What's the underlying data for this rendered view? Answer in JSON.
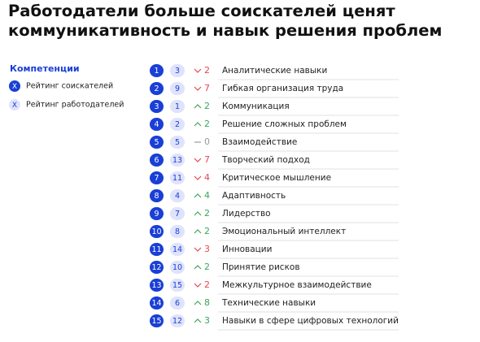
{
  "title": [
    "Работодатели больше соискателей ценят",
    "коммуникативность и навык решения проблем"
  ],
  "legend": {
    "heading": "Компетенции",
    "items": [
      {
        "marker": "X",
        "label": "Рейтинг соискателей"
      },
      {
        "marker": "X",
        "label": "Рейтинг работодателей"
      }
    ]
  },
  "rows": [
    {
      "applicant_rank": 1,
      "employer_rank": 3,
      "change": 2,
      "skill": "Аналитические навыки"
    },
    {
      "applicant_rank": 2,
      "employer_rank": 9,
      "change": 7,
      "skill": "Гибкая организация труда"
    },
    {
      "applicant_rank": 3,
      "employer_rank": 1,
      "change": 2,
      "skill": "Коммуникация"
    },
    {
      "applicant_rank": 4,
      "employer_rank": 2,
      "change": 2,
      "skill": "Решение сложных проблем"
    },
    {
      "applicant_rank": 5,
      "employer_rank": 5,
      "change": 0,
      "skill": "Взаимодействие"
    },
    {
      "applicant_rank": 6,
      "employer_rank": 13,
      "change": 7,
      "skill": "Творческий подход"
    },
    {
      "applicant_rank": 7,
      "employer_rank": 11,
      "change": 4,
      "skill": "Критическое мышление"
    },
    {
      "applicant_rank": 8,
      "employer_rank": 4,
      "change": 4,
      "skill": "Адаптивность"
    },
    {
      "applicant_rank": 9,
      "employer_rank": 7,
      "change": 2,
      "skill": "Лидерство"
    },
    {
      "applicant_rank": 10,
      "employer_rank": 8,
      "change": 2,
      "skill": "Эмоциональный интеллект"
    },
    {
      "applicant_rank": 11,
      "employer_rank": 14,
      "change": 3,
      "skill": "Инновации"
    },
    {
      "applicant_rank": 12,
      "employer_rank": 10,
      "change": 2,
      "skill": "Принятие рисков"
    },
    {
      "applicant_rank": 13,
      "employer_rank": 15,
      "change": 2,
      "skill": "Межкультурное взаимодействие"
    },
    {
      "applicant_rank": 14,
      "employer_rank": 6,
      "change": 8,
      "skill": "Технические навыки"
    },
    {
      "applicant_rank": 15,
      "employer_rank": 12,
      "change": 3,
      "skill": "Навыки в сфере цифровых технологий"
    }
  ]
}
